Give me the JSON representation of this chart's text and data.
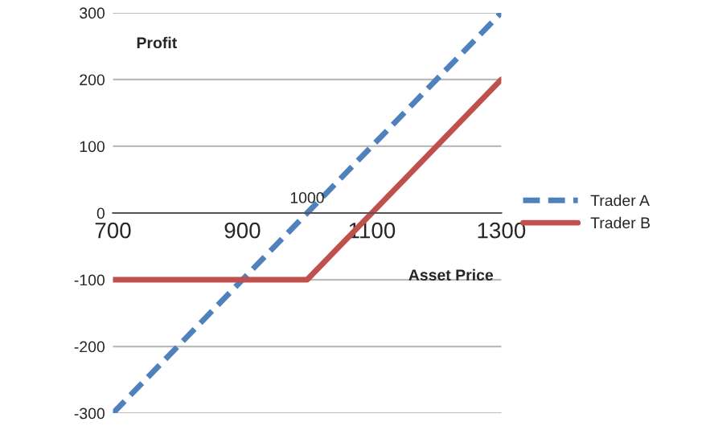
{
  "chart_data": {
    "type": "line",
    "xlabel": "Asset Price",
    "ylabel": "Profit",
    "xlim": [
      700,
      1300
    ],
    "xticks": [
      700,
      900,
      1100,
      1300
    ],
    "ylim": [
      -300,
      300
    ],
    "yticks": [
      -300,
      -200,
      -100,
      0,
      100,
      200,
      300
    ],
    "annotations": [
      {
        "text": "1000",
        "x": 1000,
        "y": 0
      }
    ],
    "series": [
      {
        "name": "Trader A",
        "color": "#4f81bd",
        "x": [
          700,
          1300
        ],
        "values": [
          -300,
          300
        ],
        "line_style": "dashed"
      },
      {
        "name": "Trader B",
        "color": "#c0504d",
        "x": [
          700,
          1000,
          1300
        ],
        "values": [
          -100,
          -100,
          200
        ],
        "line_style": "solid"
      }
    ],
    "grid": "y",
    "legend": "right",
    "marker": "none"
  }
}
